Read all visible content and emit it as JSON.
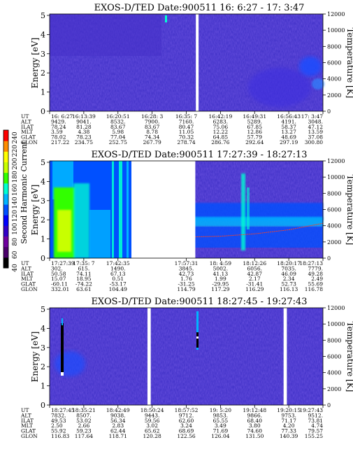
{
  "colorbar": {
    "label": "Second Harmonic Current",
    "ticks": [
      "40",
      "60",
      "80",
      "100",
      "120",
      "140",
      "160",
      "180",
      "200",
      "220",
      "240"
    ],
    "colors": [
      "#000000",
      "#4b006b",
      "#7000a0",
      "#3200c8",
      "#0000ff",
      "#0050ff",
      "#00b4ff",
      "#00ffd2",
      "#32ff00",
      "#c8ff00",
      "#ffff00",
      "#ff8c00",
      "#ff0000"
    ]
  },
  "panels": [
    {
      "title": "EXOS-D/TED   Date:900511  16: 6:27 - 17: 3:47",
      "ylabel": "Energy [eV]",
      "y2label": "Temperature [K]",
      "yticks": [
        "0",
        "1",
        "2",
        "3",
        "4",
        "5"
      ],
      "y2ticks": [
        "0",
        "2000",
        "4000",
        "6000",
        "8000",
        "10000",
        "12000"
      ],
      "gaps": [
        [
          0.535,
          0.545
        ]
      ],
      "orbit": {
        "rows": [
          "UT",
          "ALT",
          "ILAT",
          "MLT",
          "GLAT",
          "GLON"
        ],
        "columns": [
          [
            "16: 6:27",
            "9429.",
            "78.24",
            "3.59",
            "78.02",
            "217.22"
          ],
          [
            "16:13:39",
            "9041.",
            "81.28",
            "4.38",
            "78.23",
            "234.75"
          ],
          [
            "16:20:51",
            "8532.",
            "83.67",
            "5.98",
            "77.04",
            "252.75"
          ],
          [
            "16:28: 3",
            "7900.",
            "83.67",
            "8.78",
            "74.34",
            "267.79"
          ],
          [
            "16:35: 7",
            "7160.",
            "80.47",
            "11.05",
            "70.32",
            "278.74"
          ],
          [
            "16:42:19",
            "6283.",
            "75.06",
            "12.22",
            "64.85",
            "286.76"
          ],
          [
            "16:49:31",
            "5289.",
            "67.85",
            "12.86",
            "57.79",
            "292.64"
          ],
          [
            "16:56:43",
            "4191.",
            "58.37",
            "13.27",
            "48.69",
            "297.19"
          ],
          [
            "17: 3:47",
            "3048.",
            "47.12",
            "13.59",
            "37.08",
            "300.80"
          ]
        ]
      }
    },
    {
      "title": "EXOS-D/TED   Date:900511  17:27:39 - 18:27:13",
      "ylabel": "Energy [eV]",
      "y2label": "Temperature [K]",
      "yticks": [
        "0",
        "1",
        "2",
        "3",
        "4",
        "5"
      ],
      "y2ticks": [
        "0",
        "2000",
        "4000",
        "6000",
        "8000",
        "10000",
        "12000"
      ],
      "gaps": [
        [
          0.3,
          0.533
        ]
      ],
      "orbit": {
        "rows": [
          "UT",
          "ALT",
          "ILAT",
          "MLT",
          "GLAT",
          "GLON"
        ],
        "columns": [
          [
            "17:27:39",
            "302.",
            "50.58",
            "15.07",
            "-60.11",
            "332.01"
          ],
          [
            "17:35: 7",
            "615.",
            "74.11",
            "18.95",
            "-74.22",
            "63.61"
          ],
          [
            "17:42:35",
            "1490.",
            "67.13",
            "0.51",
            "-53.17",
            "104.49"
          ],
          [
            "",
            "",
            "",
            "",
            "",
            ""
          ],
          [
            "17:57:31",
            "3845.",
            "42.73",
            "1.76",
            "-31.25",
            "114.79"
          ],
          [
            "18: 4:59",
            "5002.",
            "41.13",
            "1.99",
            "-29.95",
            "117.29"
          ],
          [
            "18:12:26",
            "6056.",
            "42.87",
            "2.17",
            "-31.41",
            "116.29"
          ],
          [
            "18:20:17",
            "7035.",
            "46.09",
            "2.34",
            "52.73",
            "116.13"
          ],
          [
            "18:27:13",
            "7779.",
            "49.28",
            "2.49",
            "55.69",
            "116.78"
          ]
        ]
      }
    },
    {
      "title": "EXOS-D/TED   Date:900511  18:27:45 - 19:27:43",
      "ylabel": "Energy [eV]",
      "y2label": "Temperature [K]",
      "yticks": [
        "0",
        "1",
        "2",
        "3",
        "4",
        "5"
      ],
      "y2ticks": [
        "0",
        "2000",
        "4000",
        "6000",
        "8000",
        "10000",
        "12000"
      ],
      "gaps": [
        [
          0.358,
          0.37
        ],
        [
          0.856,
          0.868
        ]
      ],
      "orbit": {
        "rows": [
          "UT",
          "ALT",
          "ILAT",
          "MLT",
          "GLAT",
          "GLON"
        ],
        "columns": [
          [
            "18:27:45",
            "7832.",
            "49.53",
            "2.50",
            "55.92",
            "116.83"
          ],
          [
            "18:35:21",
            "8507.",
            "53.02",
            "2.66",
            "59.23",
            "117.64"
          ],
          [
            "18:42:49",
            "9038.",
            "56.34",
            "2.83",
            "62.44",
            "118.71"
          ],
          [
            "18:50:24",
            "9443.",
            "59.56",
            "3.02",
            "65.62",
            "120.28"
          ],
          [
            "18:57:52",
            "9712.",
            "62.60",
            "3.24",
            "68.69",
            "122.56"
          ],
          [
            "19: 5:20",
            "9853.",
            "65.55",
            "3.49",
            "71.69",
            "126.04"
          ],
          [
            "19:12:48",
            "9866.",
            "68.40",
            "3.80",
            "74.60",
            "131.50"
          ],
          [
            "19:20:15",
            "9753.",
            "71.17",
            "4.20",
            "77.33",
            "140.39"
          ],
          [
            "19:27:43",
            "9512.",
            "73.81",
            "4.74",
            "79.57",
            "155.25"
          ]
        ]
      }
    }
  ],
  "chart_data": [
    {
      "type": "heatmap",
      "title": "EXOS-D/TED   Date:900511  16: 6:27 - 17: 3:47",
      "xlabel": "",
      "ylabel": "Energy [eV]",
      "y2label": "Temperature [K]",
      "x_ticks": [
        "16: 6:27",
        "16:13:39",
        "16:20:51",
        "16:28: 3",
        "16:35: 7",
        "16:42:19",
        "16:49:31",
        "16:56:43",
        "17: 3:47"
      ],
      "ylim": [
        0,
        5
      ],
      "y2lim": [
        0,
        12000
      ],
      "temperature_trace": []
    },
    {
      "type": "heatmap",
      "title": "EXOS-D/TED   Date:900511  17:27:39 - 18:27:13",
      "xlabel": "",
      "ylabel": "Energy [eV]",
      "y2label": "Temperature [K]",
      "x_ticks": [
        "17:27:39",
        "17:35: 7",
        "17:42:35",
        "17:57:31",
        "18: 4:59",
        "18:12:26",
        "18:20:17",
        "18:27:13"
      ],
      "ylim": [
        0,
        5
      ],
      "y2lim": [
        0,
        12000
      ],
      "temperature_trace": [
        {
          "x": "17:57:31",
          "y": 2600
        },
        {
          "x": "18: 4:59",
          "y": 2700
        },
        {
          "x": "18:12:26",
          "y": 3000
        },
        {
          "x": "18:20:17",
          "y": 3500
        },
        {
          "x": "18:27:13",
          "y": 4300
        }
      ]
    },
    {
      "type": "heatmap",
      "title": "EXOS-D/TED   Date:900511  18:27:45 - 19:27:43",
      "xlabel": "",
      "ylabel": "Energy [eV]",
      "y2label": "Temperature [K]",
      "x_ticks": [
        "18:27:45",
        "18:35:21",
        "18:42:49",
        "18:50:24",
        "18:57:52",
        "19: 5:20",
        "19:12:48",
        "19:20:15",
        "19:27:43"
      ],
      "ylim": [
        0,
        5
      ],
      "y2lim": [
        0,
        12000
      ],
      "temperature_trace": []
    }
  ]
}
